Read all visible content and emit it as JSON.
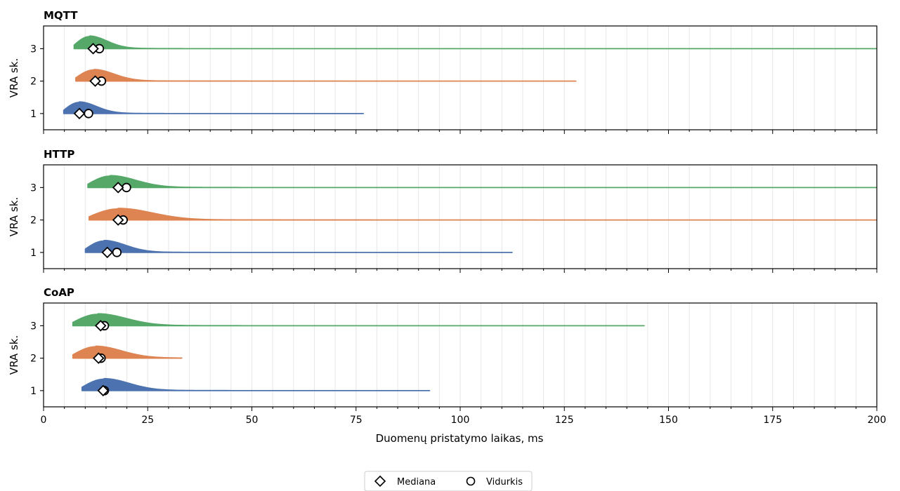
{
  "chart_data": {
    "type": "ridgeline",
    "xlabel": "Duomenų pristatymo laikas, ms",
    "ylabel": "VRA sk.",
    "xlim": [
      0,
      200
    ],
    "x_ticks": [
      0,
      25,
      50,
      75,
      100,
      125,
      150,
      175,
      200
    ],
    "y_ticks": [
      1,
      2,
      3
    ],
    "ylim": [
      0.5,
      3.7
    ],
    "grid": "vertical minor gridlines every 5 ms",
    "series_colors": {
      "1": "#4c72b0",
      "2": "#dd8452",
      "3": "#55a868"
    },
    "legend": {
      "position": "bottom-center",
      "entries": [
        {
          "label": "Mediana",
          "marker": "diamond"
        },
        {
          "label": "Vidurkis",
          "marker": "circle"
        }
      ]
    },
    "panels": [
      {
        "title": "MQTT",
        "groups": [
          {
            "vra": 3,
            "min": 7.3,
            "max": 200,
            "peak": 11,
            "peak_height": 0.38,
            "median": 11.9,
            "mean": 13.4
          },
          {
            "vra": 2,
            "min": 7.7,
            "max": 127.8,
            "peak": 12,
            "peak_height": 0.35,
            "median": 12.4,
            "mean": 13.9
          },
          {
            "vra": 1,
            "min": 4.8,
            "max": 76.8,
            "peak": 8.5,
            "peak_height": 0.35,
            "median": 8.6,
            "mean": 10.8
          }
        ]
      },
      {
        "title": "HTTP",
        "groups": [
          {
            "vra": 3,
            "min": 10.6,
            "max": 200,
            "peak": 16,
            "peak_height": 0.36,
            "median": 17.9,
            "mean": 19.9
          },
          {
            "vra": 2,
            "min": 10.9,
            "max": 200,
            "peak": 18,
            "peak_height": 0.35,
            "median": 17.9,
            "mean": 19.1
          },
          {
            "vra": 1,
            "min": 10.0,
            "max": 112.5,
            "peak": 14.5,
            "peak_height": 0.36,
            "median": 15.3,
            "mean": 17.6
          }
        ]
      },
      {
        "title": "CoAP",
        "groups": [
          {
            "vra": 3,
            "min": 7.0,
            "max": 144.2,
            "peak": 13,
            "peak_height": 0.36,
            "median": 13.7,
            "mean": 14.6
          },
          {
            "vra": 2,
            "min": 7.0,
            "max": 33.2,
            "peak": 12.5,
            "peak_height": 0.36,
            "median": 13.2,
            "mean": 13.8
          },
          {
            "vra": 1,
            "min": 9.2,
            "max": 92.7,
            "peak": 14.5,
            "peak_height": 0.36,
            "median": 14.3,
            "mean": 14.6
          }
        ]
      }
    ]
  }
}
